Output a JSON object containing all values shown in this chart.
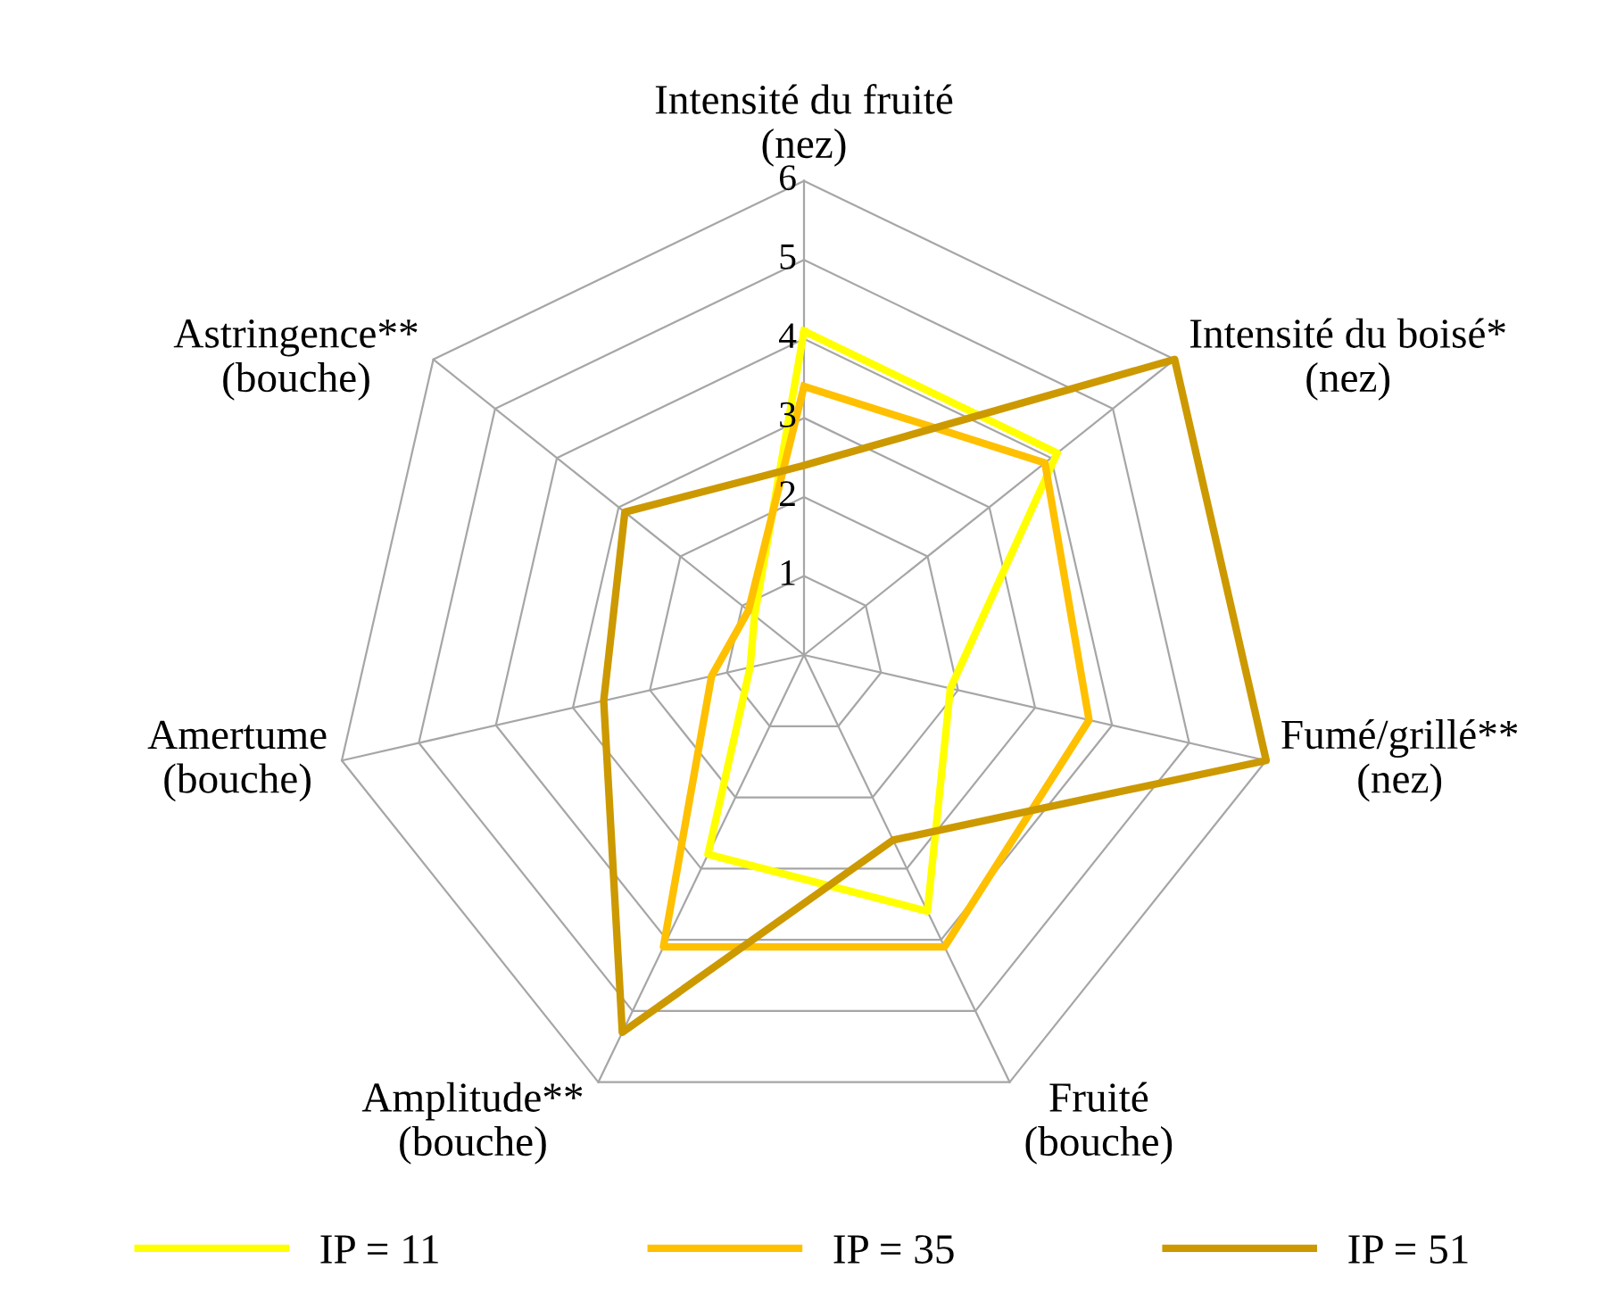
{
  "chart_data": {
    "type": "radar",
    "categories": [
      "Intensité du fruité\n(nez)",
      "Intensité du boisé*\n(nez)",
      "Fumé/grillé**\n(nez)",
      "Fruité\n(bouche)",
      "Amplitude**\n(bouche)",
      "Amertume\n(bouche)",
      "Astringence**\n(bouche)"
    ],
    "ylim": [
      0,
      6
    ],
    "yticks": [
      1,
      2,
      3,
      4,
      5,
      6
    ],
    "legend": "bottom",
    "grid": true,
    "series": [
      {
        "name": "IP = 11",
        "color": "#ffff00",
        "values": [
          4.1,
          4.1,
          1.9,
          3.6,
          2.8,
          0.7,
          0.8
        ]
      },
      {
        "name": "IP = 35",
        "color": "#ffc000",
        "values": [
          3.4,
          3.9,
          3.7,
          4.1,
          4.1,
          1.2,
          0.9
        ]
      },
      {
        "name": "IP = 51",
        "color": "#cc9900",
        "values": [
          2.4,
          6.0,
          6.0,
          2.6,
          5.3,
          2.6,
          2.9
        ]
      }
    ]
  }
}
